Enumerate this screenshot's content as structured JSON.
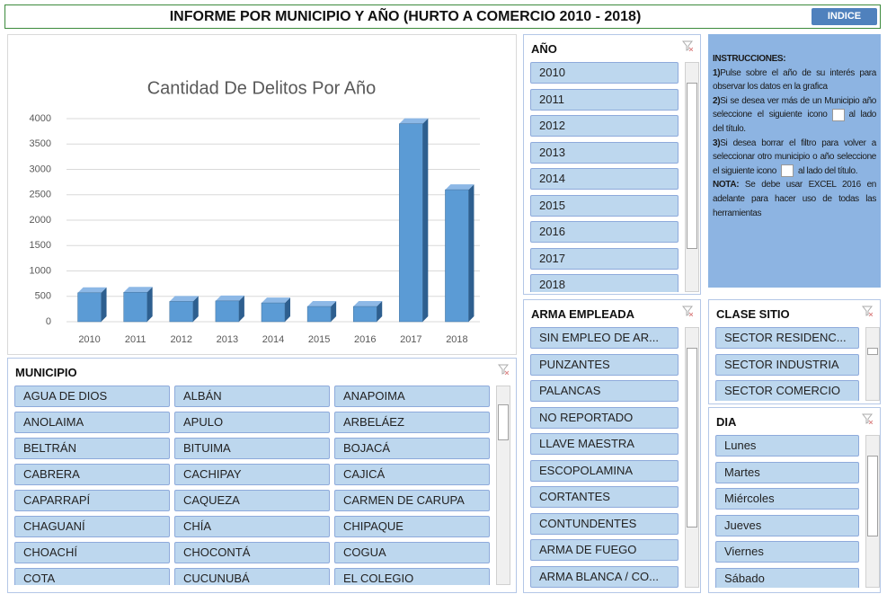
{
  "header": {
    "title": "INFORME POR MUNICIPIO Y AÑO  (HURTO A COMERCIO 2010 - 2018)",
    "button": "INDICE"
  },
  "chart_data": {
    "type": "bar",
    "title": "Cantidad De Delitos Por Año",
    "categories": [
      "2010",
      "2011",
      "2012",
      "2013",
      "2014",
      "2015",
      "2016",
      "2017",
      "2018"
    ],
    "values": [
      570,
      580,
      400,
      410,
      370,
      300,
      300,
      3900,
      2600
    ],
    "color": "#5b9bd5",
    "ylim": [
      0,
      4000
    ],
    "yticks": [
      0,
      500,
      1000,
      1500,
      2000,
      2500,
      3000,
      3500,
      4000
    ],
    "grid": true
  },
  "slicers": [
    {
      "title": "MUNICIPIO",
      "items": [
        "AGUA DE DIOS",
        "ALBÁN",
        "ANAPOIMA",
        "ANOLAIMA",
        "APULO",
        "ARBELÁEZ",
        "BELTRÁN",
        "BITUIMA",
        "BOJACÁ",
        "CABRERA",
        "CACHIPAY",
        "CAJICÁ",
        "CAPARRAPÍ",
        "CAQUEZA",
        "CARMEN DE CARUPA",
        "CHAGUANÍ",
        "CHÍA",
        "CHIPAQUE",
        "CHOACHÍ",
        "CHOCONTÁ",
        "COGUA",
        "COTA",
        "CUCUNUBÁ",
        "EL COLEGIO"
      ]
    },
    {
      "title": "AÑO",
      "items": [
        "2010",
        "2011",
        "2012",
        "2013",
        "2014",
        "2015",
        "2016",
        "2017",
        "2018"
      ]
    },
    {
      "title": "ARMA EMPLEADA",
      "items": [
        "SIN EMPLEO DE AR...",
        "PUNZANTES",
        "PALANCAS",
        "NO REPORTADO",
        "LLAVE MAESTRA",
        "ESCOPOLAMINA",
        "CORTANTES",
        "CONTUNDENTES",
        "ARMA DE FUEGO",
        "ARMA BLANCA / CO..."
      ]
    },
    {
      "title": "CLASE SITIO",
      "items": [
        "SECTOR RESIDENC...",
        "SECTOR INDUSTRIA",
        "SECTOR COMERCIO"
      ]
    },
    {
      "title": "DIA",
      "items": [
        "Lunes",
        "Martes",
        "Miércoles",
        "Jueves",
        "Viernes",
        "Sábado"
      ]
    }
  ],
  "instructions": {
    "title": "INSTRUCCIONES:",
    "steps": [
      {
        "label": "1)",
        "text": "Pulse sobre el año de su interés para observar los datos en la grafica"
      },
      {
        "label": "2)",
        "text": "Si se desea ver más de un Municipio año seleccione el siguiente icono",
        "after": "al lado del título."
      },
      {
        "label": "3)",
        "text": "Si desea borrar el filtro para volver a seleccionar otro municipio o año seleccione el siguiente icono",
        "after": "al lado del título."
      },
      {
        "label": "NOTA:",
        "text": "Se debe usar EXCEL 2016 en adelante para hacer uso de todas las herramientas"
      }
    ]
  }
}
